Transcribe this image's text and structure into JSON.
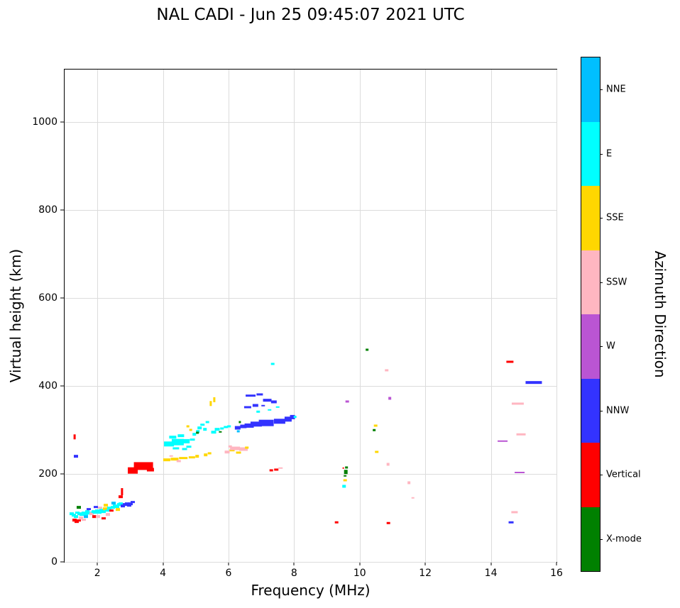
{
  "chart_data": {
    "type": "scatter",
    "title": "NAL CADI - Jun 25 09:45:07 2021 UTC",
    "xlabel": "Frequency (MHz)",
    "ylabel": "Virtual height (km)",
    "xlim": [
      1,
      16
    ],
    "ylim": [
      0,
      1120
    ],
    "xticks": [
      2,
      4,
      6,
      8,
      10,
      12,
      14,
      16
    ],
    "yticks": [
      0,
      200,
      400,
      600,
      800,
      1000
    ],
    "grid": true,
    "colorbar": {
      "title": "Azimuth Direction",
      "categories": [
        {
          "key": "NNE",
          "label": "NNE",
          "color": "#00bfff"
        },
        {
          "key": "E",
          "label": "E",
          "color": "#00ffff"
        },
        {
          "key": "SSE",
          "label": "SSE",
          "color": "#ffd700"
        },
        {
          "key": "SSW",
          "label": "SSW",
          "color": "#ffb6c1"
        },
        {
          "key": "W",
          "label": "W",
          "color": "#ba55d3"
        },
        {
          "key": "NNW",
          "label": "NNW",
          "color": "#3333ff"
        },
        {
          "key": "V",
          "label": "Vertical",
          "color": "#ff0000"
        },
        {
          "key": "X",
          "label": "X-mode",
          "color": "#008000"
        }
      ]
    },
    "point_format": "[frequency_MHz, virtual_height_km, azimuth_key, width_MHz_optional, height_km_optional]",
    "points": [
      [
        1.22,
        110,
        "E"
      ],
      [
        1.28,
        106,
        "E"
      ],
      [
        1.34,
        103,
        "E"
      ],
      [
        1.3,
        95,
        "V"
      ],
      [
        1.37,
        92,
        "V"
      ],
      [
        1.43,
        94,
        "V"
      ],
      [
        1.4,
        112,
        "E"
      ],
      [
        1.46,
        110,
        "E"
      ],
      [
        1.52,
        107,
        "E"
      ],
      [
        1.58,
        112,
        "E"
      ],
      [
        1.5,
        100,
        "SSW"
      ],
      [
        1.64,
        110,
        "E"
      ],
      [
        1.7,
        114,
        "E"
      ],
      [
        1.66,
        103,
        "NNE"
      ],
      [
        1.76,
        111,
        "E"
      ],
      [
        1.82,
        109,
        "SSW"
      ],
      [
        1.88,
        114,
        "E"
      ],
      [
        1.94,
        112,
        "E"
      ],
      [
        1.9,
        103,
        "V"
      ],
      [
        2.0,
        116,
        "E"
      ],
      [
        2.06,
        112,
        "E"
      ],
      [
        2.02,
        103,
        "SSW"
      ],
      [
        2.12,
        118,
        "E"
      ],
      [
        2.18,
        114,
        "E"
      ],
      [
        2.24,
        121,
        "SSE"
      ],
      [
        2.3,
        117,
        "E"
      ],
      [
        2.26,
        129,
        "SSE"
      ],
      [
        2.36,
        122,
        "E"
      ],
      [
        2.42,
        117,
        "V"
      ],
      [
        2.48,
        124,
        "E"
      ],
      [
        2.54,
        128,
        "E"
      ],
      [
        2.5,
        134,
        "NNE"
      ],
      [
        2.6,
        126,
        "E"
      ],
      [
        2.66,
        130,
        "E"
      ],
      [
        2.72,
        132,
        "E"
      ],
      [
        2.78,
        127,
        "NNW"
      ],
      [
        2.84,
        130,
        "NNW"
      ],
      [
        2.9,
        133,
        "NNW"
      ],
      [
        2.96,
        129,
        "NNW"
      ],
      [
        3.02,
        132,
        "NNW"
      ],
      [
        3.07,
        136,
        "NNW"
      ],
      [
        2.75,
        160,
        "V",
        0.07,
        16
      ],
      [
        2.7,
        148,
        "V"
      ],
      [
        1.35,
        240,
        "NNW"
      ],
      [
        1.3,
        284,
        "V",
        0.06,
        12
      ],
      [
        1.44,
        124,
        "X"
      ],
      [
        2.2,
        99,
        "V"
      ],
      [
        1.58,
        96,
        "SSW"
      ],
      [
        2.62,
        119,
        "SSE"
      ],
      [
        1.74,
        120,
        "NNW"
      ],
      [
        2.08,
        123,
        "SSW"
      ],
      [
        1.96,
        125,
        "NNW"
      ],
      [
        2.32,
        108,
        "SSW"
      ],
      [
        3.08,
        208,
        "V",
        0.3,
        14
      ],
      [
        3.4,
        218,
        "V",
        0.58,
        18
      ],
      [
        3.62,
        210,
        "V",
        0.22,
        8
      ],
      [
        3.3,
        222,
        "V",
        0.12,
        8
      ],
      [
        4.12,
        232,
        "SSE",
        0.22,
        6
      ],
      [
        4.36,
        234,
        "SSE",
        0.24,
        6
      ],
      [
        4.62,
        236,
        "SSE",
        0.25,
        6
      ],
      [
        4.88,
        238,
        "SSE",
        0.18,
        6
      ],
      [
        5.04,
        240,
        "SSE",
        0.12,
        6
      ],
      [
        5.3,
        244,
        "SSE",
        0.12,
        6
      ],
      [
        4.48,
        229,
        "SSW",
        0.14,
        5
      ],
      [
        4.25,
        241,
        "SSW",
        0.1,
        4
      ],
      [
        5.42,
        247,
        "SSE",
        0.1,
        5
      ],
      [
        5.45,
        360,
        "SSE",
        0.07,
        12
      ],
      [
        5.56,
        369,
        "SSE",
        0.07,
        10
      ],
      [
        4.18,
        268,
        "E",
        0.3,
        12
      ],
      [
        4.45,
        272,
        "E",
        0.35,
        14
      ],
      [
        4.7,
        275,
        "E",
        0.25,
        10
      ],
      [
        4.3,
        284,
        "E",
        0.2,
        6
      ],
      [
        4.55,
        287,
        "E",
        0.2,
        6
      ],
      [
        4.78,
        262,
        "E",
        0.15,
        6
      ],
      [
        4.9,
        278,
        "E",
        0.15,
        6
      ],
      [
        4.96,
        290,
        "E",
        0.12,
        6
      ],
      [
        5.06,
        297,
        "E",
        0.12,
        6
      ],
      [
        5.12,
        305,
        "E",
        0.12,
        6
      ],
      [
        5.2,
        312,
        "E",
        0.12,
        6
      ],
      [
        5.28,
        301,
        "E",
        0.12,
        6
      ],
      [
        5.36,
        318,
        "E",
        0.1,
        5
      ],
      [
        4.85,
        300,
        "SSE",
        0.1,
        5
      ],
      [
        4.76,
        308,
        "SSE",
        0.1,
        5
      ],
      [
        5.05,
        294,
        "X",
        0.08,
        5
      ],
      [
        4.65,
        256,
        "E",
        0.15,
        5
      ],
      [
        4.4,
        258,
        "E",
        0.2,
        5
      ],
      [
        5.55,
        295,
        "E",
        0.15,
        6
      ],
      [
        5.66,
        301,
        "E",
        0.15,
        6
      ],
      [
        5.8,
        304,
        "E",
        0.12,
        5
      ],
      [
        5.92,
        307,
        "E",
        0.12,
        5
      ],
      [
        5.75,
        296,
        "X",
        0.07,
        4
      ],
      [
        6.02,
        309,
        "E",
        0.12,
        5
      ],
      [
        5.95,
        250,
        "SSW",
        0.15,
        6
      ],
      [
        6.1,
        254,
        "SSE",
        0.15,
        6
      ],
      [
        6.2,
        258,
        "SSW",
        0.3,
        8
      ],
      [
        6.45,
        256,
        "SSW",
        0.26,
        8
      ],
      [
        6.3,
        249,
        "SSE",
        0.15,
        5
      ],
      [
        6.56,
        260,
        "SSE",
        0.12,
        5
      ],
      [
        6.05,
        263,
        "SSW",
        0.1,
        4
      ],
      [
        6.28,
        305,
        "NNW",
        0.18,
        8
      ],
      [
        6.45,
        308,
        "NNW",
        0.2,
        8
      ],
      [
        6.62,
        310,
        "NNW",
        0.28,
        10
      ],
      [
        6.85,
        313,
        "NNW",
        0.35,
        12
      ],
      [
        7.15,
        316,
        "NNW",
        0.45,
        14
      ],
      [
        7.55,
        320,
        "NNW",
        0.35,
        12
      ],
      [
        7.82,
        325,
        "NNW",
        0.22,
        12
      ],
      [
        7.95,
        330,
        "NNW",
        0.15,
        10
      ],
      [
        8.03,
        330,
        "E",
        0.1,
        6
      ],
      [
        6.35,
        318,
        "X",
        0.07,
        5
      ],
      [
        6.3,
        297,
        "NNE",
        0.1,
        5
      ],
      [
        6.58,
        352,
        "NNW",
        0.22,
        5
      ],
      [
        6.82,
        356,
        "NNW",
        0.18,
        5
      ],
      [
        6.68,
        378,
        "NNW",
        0.3,
        6
      ],
      [
        6.95,
        381,
        "NNW",
        0.2,
        5
      ],
      [
        7.18,
        368,
        "NNW",
        0.28,
        6
      ],
      [
        7.38,
        364,
        "NNW",
        0.18,
        5
      ],
      [
        7.05,
        355,
        "NNW",
        0.12,
        4
      ],
      [
        6.9,
        342,
        "E",
        0.12,
        4
      ],
      [
        7.25,
        346,
        "E",
        0.12,
        4
      ],
      [
        7.5,
        352,
        "E",
        0.1,
        4
      ],
      [
        7.35,
        450,
        "E",
        0.1,
        5
      ],
      [
        7.3,
        208,
        "V",
        0.1,
        5
      ],
      [
        7.45,
        210,
        "V",
        0.12,
        5
      ],
      [
        7.58,
        213,
        "SSW",
        0.12,
        4
      ],
      [
        9.3,
        90,
        "V",
        0.1,
        4
      ],
      [
        9.52,
        172,
        "E",
        0.12,
        5
      ],
      [
        9.55,
        186,
        "SSE",
        0.1,
        5
      ],
      [
        9.55,
        196,
        "X",
        0.08,
        4
      ],
      [
        9.57,
        205,
        "X",
        0.1,
        9
      ],
      [
        9.6,
        214,
        "X",
        0.08,
        5
      ],
      [
        9.5,
        213,
        "V",
        0.06,
        4
      ],
      [
        9.62,
        365,
        "W",
        0.1,
        5
      ],
      [
        10.22,
        482,
        "X",
        0.08,
        5
      ],
      [
        10.48,
        310,
        "SSE",
        0.1,
        5
      ],
      [
        10.44,
        300,
        "X",
        0.08,
        4
      ],
      [
        10.52,
        250,
        "SSE",
        0.12,
        5
      ],
      [
        10.82,
        436,
        "SSW",
        0.12,
        5
      ],
      [
        10.92,
        372,
        "W",
        0.08,
        5
      ],
      [
        10.86,
        222,
        "SSW",
        0.1,
        5
      ],
      [
        10.88,
        88,
        "V",
        0.1,
        4
      ],
      [
        11.5,
        180,
        "SSW",
        0.08,
        5
      ],
      [
        11.62,
        146,
        "SSW",
        0.1,
        4
      ],
      [
        14.35,
        275,
        "W",
        0.3,
        4
      ],
      [
        14.58,
        455,
        "V",
        0.2,
        5
      ],
      [
        14.82,
        360,
        "SSW",
        0.35,
        5
      ],
      [
        14.92,
        290,
        "SSW",
        0.28,
        4
      ],
      [
        15.3,
        408,
        "NNW",
        0.5,
        6
      ],
      [
        14.88,
        203,
        "W",
        0.3,
        3
      ],
      [
        14.72,
        113,
        "SSW",
        0.2,
        5
      ],
      [
        14.62,
        90,
        "NNW",
        0.15,
        4
      ]
    ]
  }
}
